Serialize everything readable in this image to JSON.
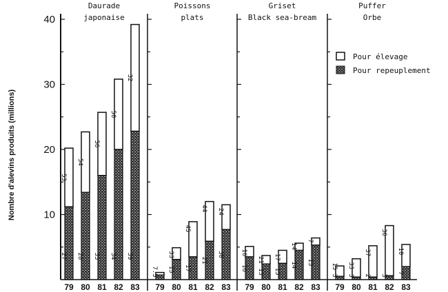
{
  "chart_data": {
    "type": "bar",
    "stacked": true,
    "ylabel": "Nombre d'alevins produits (millions)",
    "ylim": [
      0,
      40
    ],
    "yticks": [
      10,
      20,
      30,
      40
    ],
    "grid": false,
    "legend_position": "top-right",
    "legend": [
      {
        "label": "Pour élevage",
        "pattern": "white"
      },
      {
        "label": "Pour repeuplement",
        "pattern": "stipple"
      }
    ],
    "colors": {
      "elevage": "#ffffff",
      "repeuplement": "#555555",
      "outline": "#111111"
    },
    "categories": [
      "79",
      "80",
      "81",
      "82",
      "83"
    ],
    "panels": [
      {
        "title_lines": [
          "Daurade",
          "japonaise"
        ],
        "total": [
          20.2,
          22.7,
          25.7,
          30.8,
          39.2
        ],
        "repeuplement": [
          11.2,
          13.4,
          16.0,
          20.0,
          22.8
        ],
        "label_repeuplement": [
          "27",
          "28",
          "33",
          "34",
          "39"
        ],
        "label_elevage": [
          "53",
          "54",
          "56",
          "50",
          "32"
        ]
      },
      {
        "title_lines": [
          "Poissons",
          "plats"
        ],
        "total": [
          1.1,
          4.9,
          8.9,
          12.0,
          11.5
        ],
        "repeuplement": [
          0.7,
          3.1,
          3.5,
          5.9,
          7.7
        ],
        "label_repeuplement": [
          "7.5",
          "13",
          "17",
          "21",
          "30"
        ],
        "label_elevage": [
          "",
          "33",
          "45",
          "44",
          "24"
        ]
      },
      {
        "title_lines": [
          "Griset",
          "Black sea-bream"
        ],
        "total": [
          5.1,
          3.7,
          4.5,
          5.6,
          6.4
        ],
        "repeuplement": [
          3.5,
          2.4,
          2.5,
          4.5,
          5.3
        ],
        "label_repeuplement": [
          "16",
          "13",
          "15",
          "14",
          "13"
        ],
        "label_elevage": [
          "16",
          "21",
          "17",
          "14",
          "7"
        ]
      },
      {
        "title_lines": [
          "Puffer",
          "Orbe"
        ],
        "total": [
          2.1,
          3.2,
          5.2,
          8.3,
          5.4
        ],
        "repeuplement": [
          0.5,
          0.4,
          0.4,
          0.6,
          2.0
        ],
        "label_repeuplement": [
          "3",
          "3",
          "2",
          "3",
          "7"
        ],
        "label_elevage": [
          "15",
          "33",
          "37",
          "36",
          "10"
        ]
      }
    ]
  }
}
